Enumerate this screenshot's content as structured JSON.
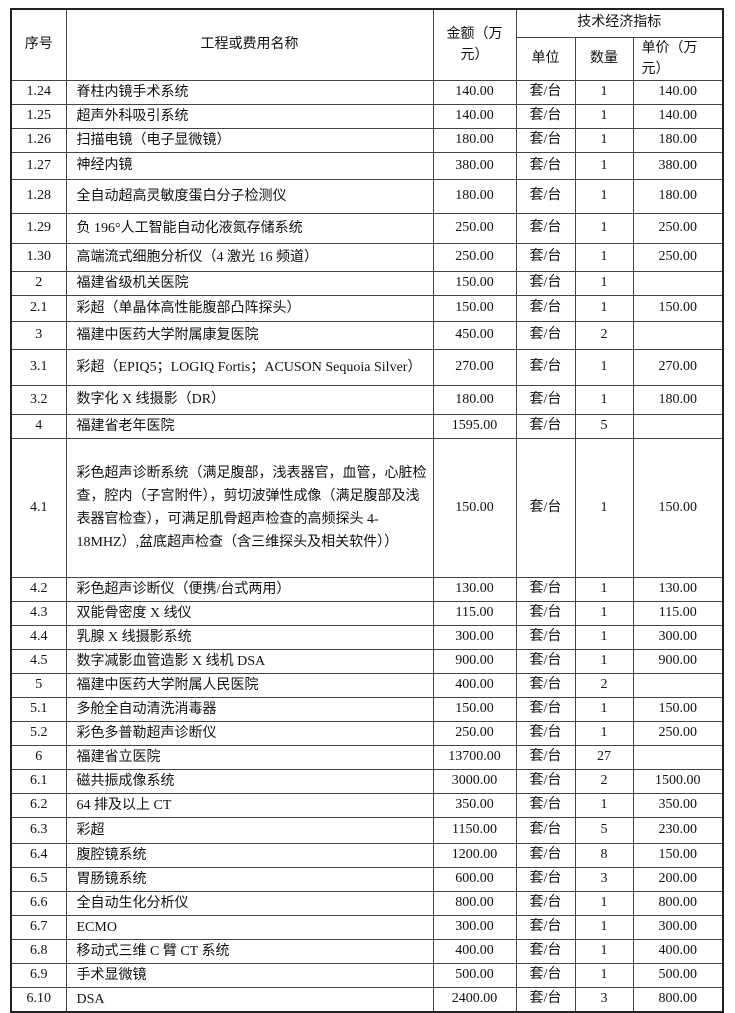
{
  "header": {
    "seq": "序号",
    "name": "工程或费用名称",
    "amount": "金额（万元）",
    "indicators": "技术经济指标",
    "unit": "单位",
    "qty": "数量",
    "price": "单价（万元）"
  },
  "rows": [
    {
      "seq": "1.24",
      "name": "脊柱内镜手术系统",
      "amount": "140.00",
      "unit": "套/台",
      "qty": "1",
      "price": "140.00"
    },
    {
      "seq": "1.25",
      "name": "超声外科吸引系统",
      "amount": "140.00",
      "unit": "套/台",
      "qty": "1",
      "price": "140.00"
    },
    {
      "seq": "1.26",
      "name": "扫描电镜（电子显微镜）",
      "amount": "180.00",
      "unit": "套/台",
      "qty": "1",
      "price": "180.00"
    },
    {
      "seq": "1.27",
      "name": "神经内镜",
      "amount": "380.00",
      "unit": "套/台",
      "qty": "1",
      "price": "380.00"
    },
    {
      "seq": "1.28",
      "name": "全自动超高灵敏度蛋白分子检测仪",
      "amount": "180.00",
      "unit": "套/台",
      "qty": "1",
      "price": "180.00"
    },
    {
      "seq": "1.29",
      "name": "负 196°人工智能自动化液氮存储系统",
      "amount": "250.00",
      "unit": "套/台",
      "qty": "1",
      "price": "250.00"
    },
    {
      "seq": "1.30",
      "name": "高端流式细胞分析仪（4 激光 16 频道）",
      "amount": "250.00",
      "unit": "套/台",
      "qty": "1",
      "price": "250.00"
    },
    {
      "seq": "2",
      "name": "福建省级机关医院",
      "amount": "150.00",
      "unit": "套/台",
      "qty": "1",
      "price": ""
    },
    {
      "seq": "2.1",
      "name": "彩超（单晶体高性能腹部凸阵探头）",
      "amount": "150.00",
      "unit": "套/台",
      "qty": "1",
      "price": "150.00"
    },
    {
      "seq": "3",
      "name": "福建中医药大学附属康复医院",
      "amount": "450.00",
      "unit": "套/台",
      "qty": "2",
      "price": ""
    },
    {
      "seq": "3.1",
      "name": "彩超（EPIQ5；LOGIQ Fortis；ACUSON Sequoia Silver）",
      "amount": "270.00",
      "unit": "套/台",
      "qty": "1",
      "price": "270.00"
    },
    {
      "seq": "3.2",
      "name": "数字化 X 线摄影（DR）",
      "amount": "180.00",
      "unit": "套/台",
      "qty": "1",
      "price": "180.00"
    },
    {
      "seq": "4",
      "name": "福建省老年医院",
      "amount": "1595.00",
      "unit": "套/台",
      "qty": "5",
      "price": ""
    },
    {
      "seq": "4.1",
      "name": "彩色超声诊断系统（满足腹部，浅表器官，血管，心脏检查，腔内（子宫附件），剪切波弹性成像（满足腹部及浅表器官检查），可满足肌骨超声检查的高频探头 4-18MHZ）,盆底超声检查（含三维探头及相关软件））",
      "amount": "150.00",
      "unit": "套/台",
      "qty": "1",
      "price": "150.00"
    },
    {
      "seq": "4.2",
      "name": "彩色超声诊断仪（便携/台式两用）",
      "amount": "130.00",
      "unit": "套/台",
      "qty": "1",
      "price": "130.00"
    },
    {
      "seq": "4.3",
      "name": "双能骨密度 X 线仪",
      "amount": "115.00",
      "unit": "套/台",
      "qty": "1",
      "price": "115.00"
    },
    {
      "seq": "4.4",
      "name": "乳腺 X 线摄影系统",
      "amount": "300.00",
      "unit": "套/台",
      "qty": "1",
      "price": "300.00"
    },
    {
      "seq": "4.5",
      "name": "数字减影血管造影 X 线机 DSA",
      "amount": "900.00",
      "unit": "套/台",
      "qty": "1",
      "price": "900.00"
    },
    {
      "seq": "5",
      "name": "福建中医药大学附属人民医院",
      "amount": "400.00",
      "unit": "套/台",
      "qty": "2",
      "price": ""
    },
    {
      "seq": "5.1",
      "name": "多舱全自动清洗消毒器",
      "amount": "150.00",
      "unit": "套/台",
      "qty": "1",
      "price": "150.00"
    },
    {
      "seq": "5.2",
      "name": "彩色多普勒超声诊断仪",
      "amount": "250.00",
      "unit": "套/台",
      "qty": "1",
      "price": "250.00"
    },
    {
      "seq": "6",
      "name": "福建省立医院",
      "amount": "13700.00",
      "unit": "套/台",
      "qty": "27",
      "price": ""
    },
    {
      "seq": "6.1",
      "name": "磁共振成像系统",
      "amount": "3000.00",
      "unit": "套/台",
      "qty": "2",
      "price": "1500.00"
    },
    {
      "seq": "6.2",
      "name": "64 排及以上 CT",
      "amount": "350.00",
      "unit": "套/台",
      "qty": "1",
      "price": "350.00"
    },
    {
      "seq": "6.3",
      "name": "彩超",
      "amount": "1150.00",
      "unit": "套/台",
      "qty": "5",
      "price": "230.00"
    },
    {
      "seq": "6.4",
      "name": "腹腔镜系统",
      "amount": "1200.00",
      "unit": "套/台",
      "qty": "8",
      "price": "150.00"
    },
    {
      "seq": "6.5",
      "name": "胃肠镜系统",
      "amount": "600.00",
      "unit": "套/台",
      "qty": "3",
      "price": "200.00"
    },
    {
      "seq": "6.6",
      "name": "全自动生化分析仪",
      "amount": "800.00",
      "unit": "套/台",
      "qty": "1",
      "price": "800.00"
    },
    {
      "seq": "6.7",
      "name": "ECMO",
      "amount": "300.00",
      "unit": "套/台",
      "qty": "1",
      "price": "300.00"
    },
    {
      "seq": "6.8",
      "name": "移动式三维 C 臂 CT 系统",
      "amount": "400.00",
      "unit": "套/台",
      "qty": "1",
      "price": "400.00"
    },
    {
      "seq": "6.9",
      "name": "手术显微镜",
      "amount": "500.00",
      "unit": "套/台",
      "qty": "1",
      "price": "500.00"
    },
    {
      "seq": "6.10",
      "name": "DSA",
      "amount": "2400.00",
      "unit": "套/台",
      "qty": "3",
      "price": "800.00"
    }
  ]
}
